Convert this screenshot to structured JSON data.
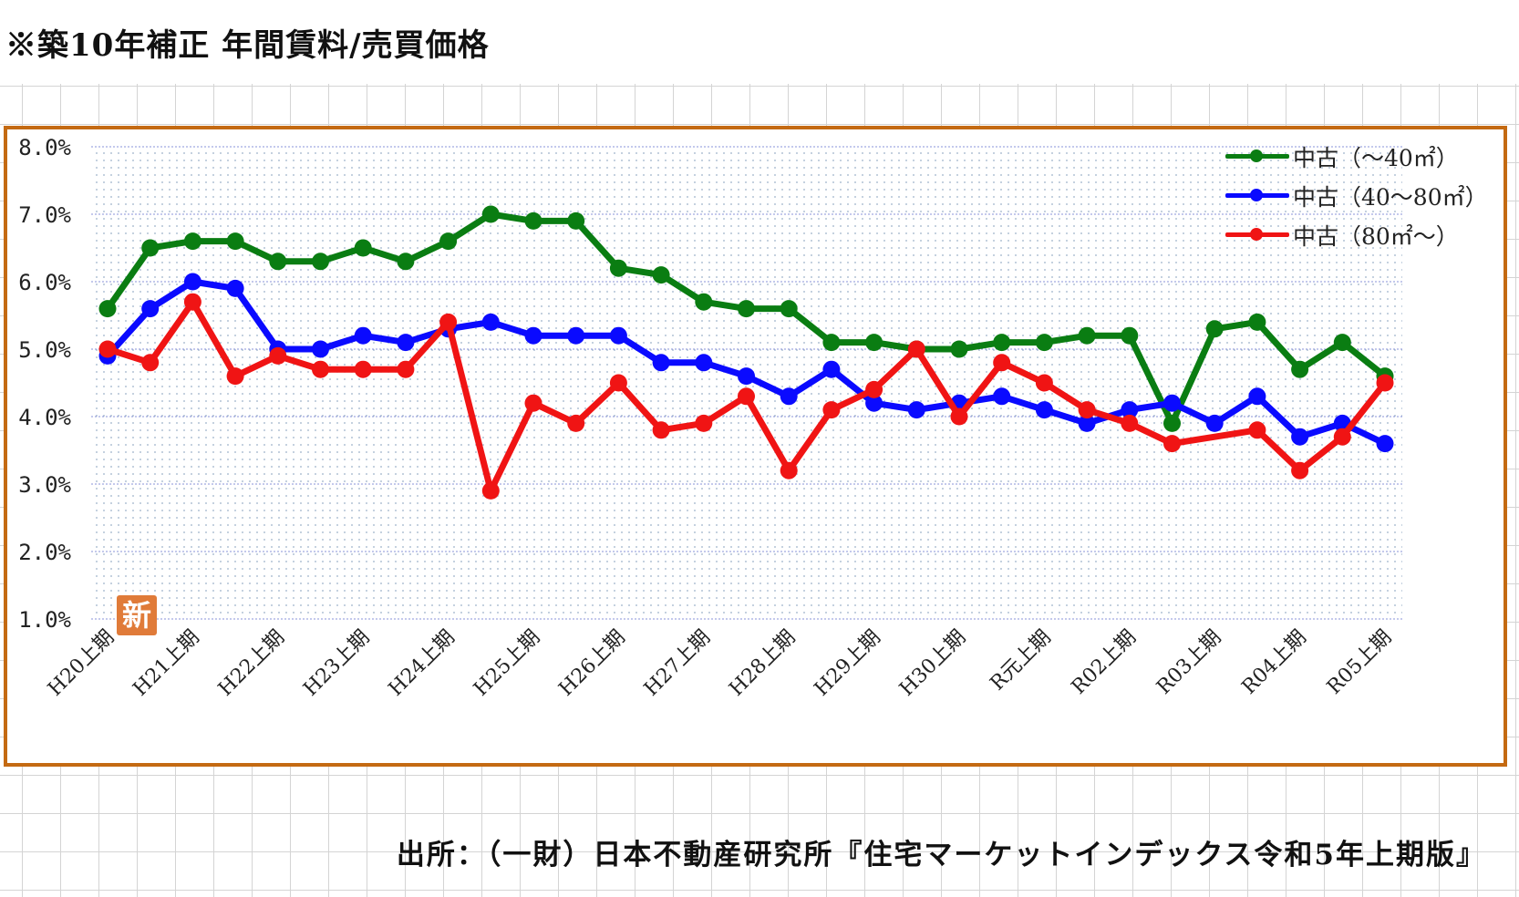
{
  "page": {
    "title": "※築10年補正  年間賃料/売買価格",
    "source": "出所：（一財）日本不動産研究所『住宅マーケットインデックス令和5年上期版』",
    "badge": "新"
  },
  "colors": {
    "frame": "#c46a12",
    "green": "#0a7d12",
    "blue": "#0a0aff",
    "red": "#f01414",
    "badge": "#e07b39"
  },
  "chart_data": {
    "type": "line",
    "title": "",
    "xlabel": "",
    "ylabel": "",
    "ylim": [
      1.0,
      8.0
    ],
    "yticks": [
      "1.0%",
      "2.0%",
      "3.0%",
      "4.0%",
      "5.0%",
      "6.0%",
      "7.0%",
      "8.0%"
    ],
    "xtick_labels": [
      "H20上期",
      "H21上期",
      "H22上期",
      "H23上期",
      "H24上期",
      "H25上期",
      "H26上期",
      "H27上期",
      "H28上期",
      "H29上期",
      "H30上期",
      "R元上期",
      "R02上期",
      "R03上期",
      "R04上期",
      "R05上期"
    ],
    "grid": true,
    "legend_position": "top-right",
    "periods": 31,
    "series": [
      {
        "name": "中古（～40㎡）",
        "color": "#0a7d12",
        "values": [
          5.6,
          6.5,
          6.6,
          6.6,
          6.3,
          6.3,
          6.5,
          6.3,
          6.6,
          7.0,
          6.9,
          6.9,
          6.2,
          6.1,
          5.7,
          5.6,
          5.6,
          5.1,
          5.1,
          5.0,
          5.0,
          5.1,
          5.1,
          5.2,
          5.2,
          3.9,
          5.3,
          5.4,
          4.7,
          5.1,
          4.6
        ]
      },
      {
        "name": "中古（40～80㎡）",
        "color": "#0a0aff",
        "values": [
          4.9,
          5.6,
          6.0,
          5.9,
          5.0,
          5.0,
          5.2,
          5.1,
          5.3,
          5.4,
          5.2,
          5.2,
          5.2,
          4.8,
          4.8,
          4.6,
          4.3,
          4.7,
          4.2,
          4.1,
          4.2,
          4.3,
          4.1,
          3.9,
          4.1,
          4.2,
          3.9,
          4.3,
          3.7,
          3.9,
          3.6
        ]
      },
      {
        "name": "中古（80㎡～）",
        "color": "#f01414",
        "values": [
          5.0,
          4.8,
          5.7,
          4.6,
          4.9,
          4.7,
          4.7,
          4.7,
          5.4,
          2.9,
          4.2,
          3.9,
          4.5,
          3.8,
          3.9,
          4.3,
          3.2,
          4.1,
          4.4,
          5.0,
          4.0,
          4.8,
          4.5,
          4.1,
          3.9,
          3.6,
          null,
          3.8,
          3.2,
          3.7,
          4.5
        ]
      }
    ]
  }
}
